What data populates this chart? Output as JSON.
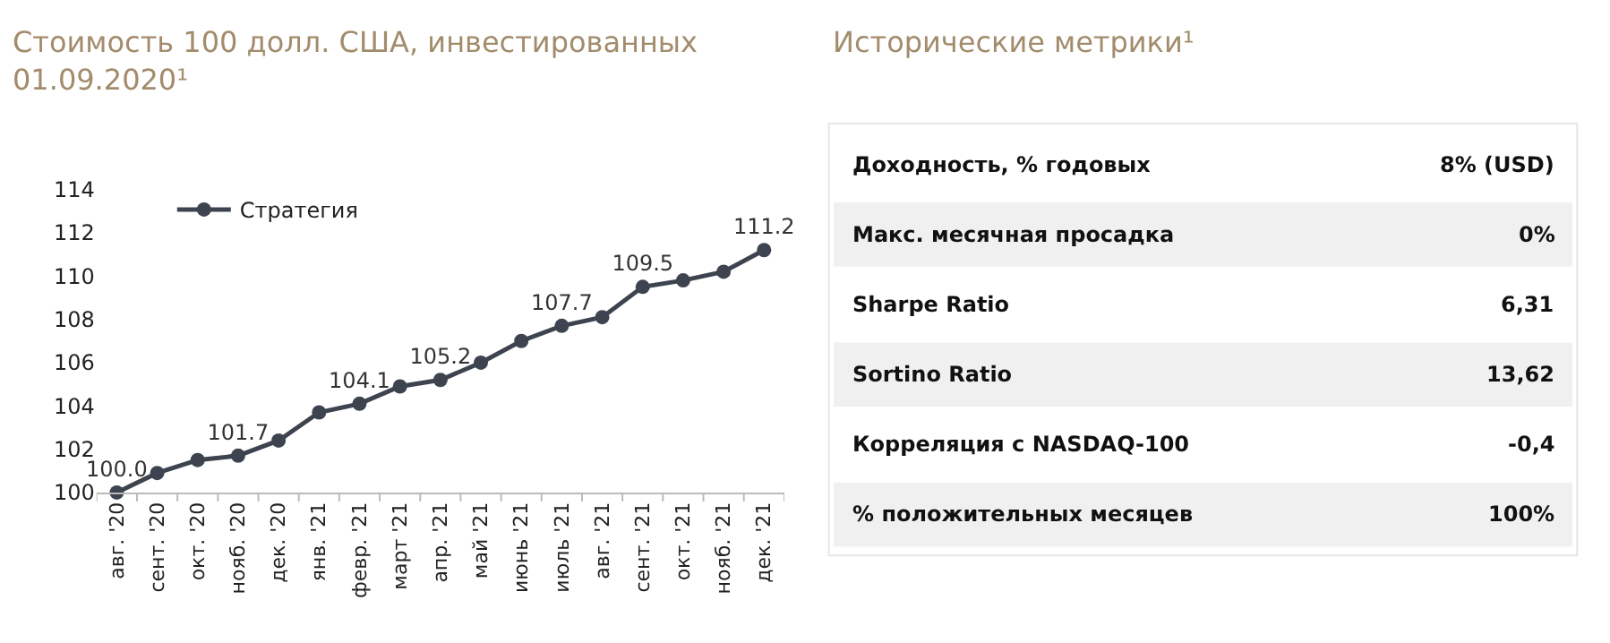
{
  "chart_data": [
    {
      "type": "line",
      "title": "Стоимость 100 долл. США, инвестированных 01.09.2020¹",
      "categories": [
        "авг. '20",
        "сент. '20",
        "окт. '20",
        "нояб. '20",
        "дек. '20",
        "янв. '21",
        "февр. '21",
        "март '21",
        "апр. '21",
        "май '21",
        "июнь '21",
        "июль '21",
        "авг. '21",
        "сент. '21",
        "окт. '21",
        "нояб. '21",
        "дек. '21"
      ],
      "series": [
        {
          "name": "Стратегия",
          "color": "#3d4450",
          "values": [
            100.0,
            100.9,
            101.5,
            101.7,
            102.4,
            103.7,
            104.1,
            104.9,
            105.2,
            106.0,
            107.0,
            107.7,
            108.1,
            109.5,
            109.8,
            110.2,
            111.2
          ],
          "value_labels": [
            "100.0",
            null,
            null,
            "101.7",
            null,
            null,
            "104.1",
            null,
            "105.2",
            null,
            null,
            "107.7",
            null,
            "109.5",
            null,
            null,
            "111.2"
          ]
        }
      ],
      "ylim": [
        100,
        114
      ],
      "yticks": [
        100,
        102,
        104,
        106,
        108,
        110,
        112,
        114
      ],
      "legend": "top left",
      "marker": "circle",
      "line_style": "solid"
    },
    {
      "type": "other",
      "title": "Исторические метрики¹",
      "categories": [
        "Доходность, % годовых",
        "Макс. месячная просадка",
        "Sharpe Ratio",
        "Sortino Ratio",
        "Корреляция с NASDAQ-100",
        "% положительных месяцев"
      ],
      "value_labels": [
        "8% (USD)",
        "0%",
        "6,31",
        "13,62",
        "-0,4",
        "100%"
      ]
    }
  ]
}
